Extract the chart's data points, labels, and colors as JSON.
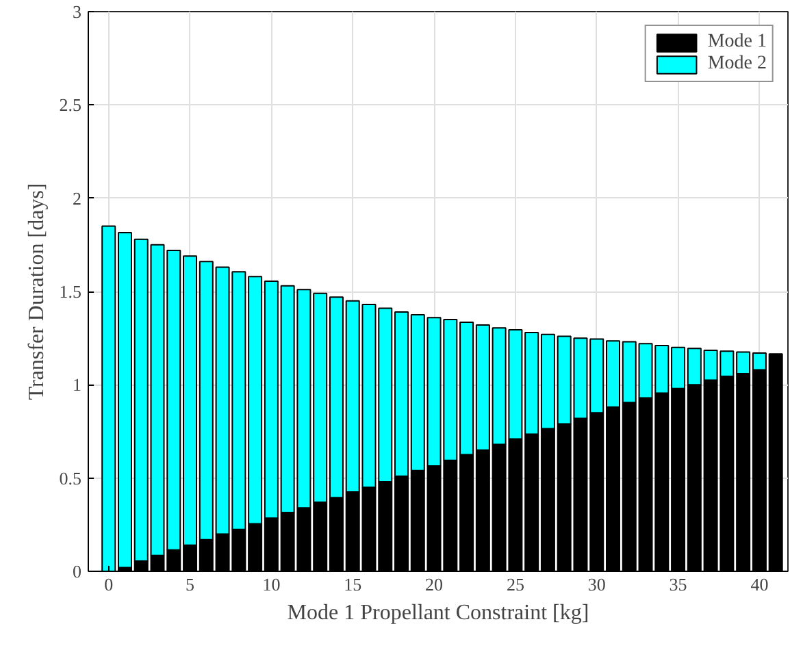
{
  "chart_data": {
    "type": "bar",
    "stacked": true,
    "xlabel": "Mode 1 Propellant Constraint [kg]",
    "ylabel": "Transfer Duration [days]",
    "x": [
      0,
      1,
      2,
      3,
      4,
      5,
      6,
      7,
      8,
      9,
      10,
      11,
      12,
      13,
      14,
      15,
      16,
      17,
      18,
      19,
      20,
      21,
      22,
      23,
      24,
      25,
      26,
      27,
      28,
      29,
      30,
      31,
      32,
      33,
      34,
      35,
      36,
      37,
      38,
      39,
      40,
      41
    ],
    "series": [
      {
        "name": "Mode 1",
        "color": "#000000",
        "values": [
          null,
          0.02,
          0.055,
          0.085,
          0.115,
          0.14,
          0.17,
          0.2,
          0.225,
          0.255,
          0.285,
          0.315,
          0.34,
          0.37,
          0.395,
          0.425,
          0.45,
          0.48,
          0.51,
          0.54,
          0.565,
          0.595,
          0.625,
          0.65,
          0.68,
          0.71,
          0.735,
          0.765,
          0.79,
          0.82,
          0.85,
          0.88,
          0.905,
          0.93,
          0.955,
          0.98,
          1.0,
          1.025,
          1.045,
          1.06,
          1.08,
          1.165
        ]
      },
      {
        "name": "Mode 2",
        "color": "#00ffff",
        "values": [
          1.85,
          1.795,
          1.725,
          1.665,
          1.605,
          1.55,
          1.49,
          1.43,
          1.38,
          1.325,
          1.27,
          1.215,
          1.17,
          1.12,
          1.075,
          1.025,
          0.98,
          0.93,
          0.88,
          0.835,
          0.795,
          0.755,
          0.71,
          0.67,
          0.625,
          0.585,
          0.545,
          0.505,
          0.47,
          0.43,
          0.395,
          0.355,
          0.325,
          0.29,
          0.255,
          0.22,
          0.195,
          0.16,
          0.135,
          0.115,
          0.09,
          null
        ]
      }
    ],
    "xlim": [
      -1.25,
      41.75
    ],
    "xticks": [
      0,
      5,
      10,
      15,
      20,
      25,
      30,
      35,
      40
    ],
    "ylim": [
      0,
      3
    ],
    "yticks": [
      0,
      0.5,
      1,
      1.5,
      2,
      2.5,
      3
    ],
    "grid": true,
    "legend": "top right"
  }
}
